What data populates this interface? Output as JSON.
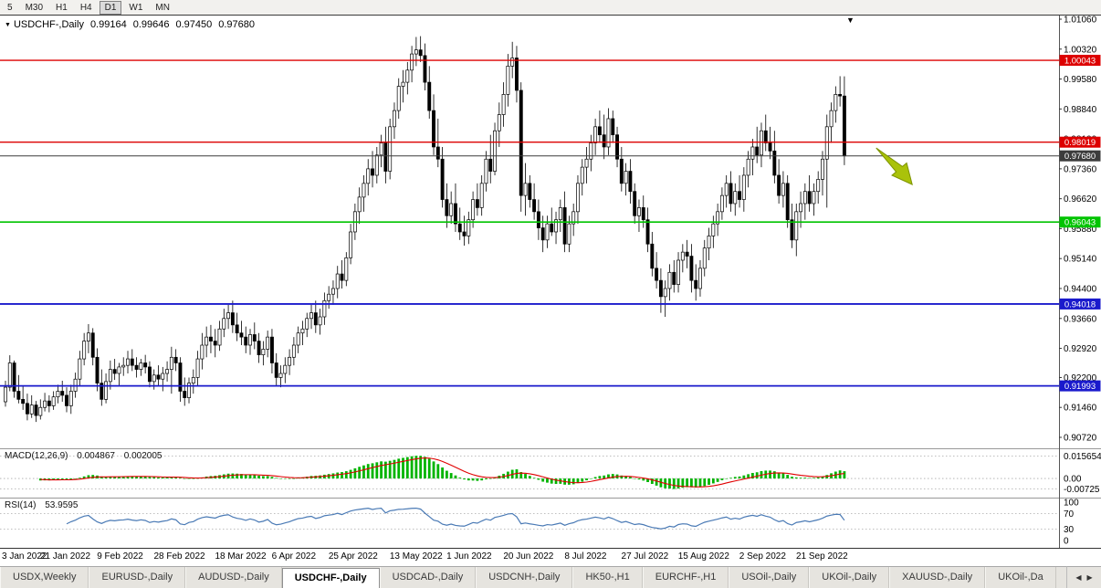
{
  "icons": {
    "dropdown": "▼",
    "scroll_marker": "▼",
    "tab_prev": "◀",
    "tab_next": "▶"
  },
  "toolbar": {
    "timeframes": [
      {
        "label": "5",
        "active": false
      },
      {
        "label": "M30",
        "active": false
      },
      {
        "label": "H1",
        "active": false
      },
      {
        "label": "H4",
        "active": false
      },
      {
        "label": "D1",
        "active": true
      },
      {
        "label": "W1",
        "active": false
      },
      {
        "label": "MN",
        "active": false
      }
    ]
  },
  "chart_header": {
    "symbol": "USDCHF-,Daily",
    "open": "0.99164",
    "high": "0.99646",
    "low": "0.97450",
    "close": "0.97680"
  },
  "tabs": [
    {
      "label": "USDX,Weekly",
      "active": false
    },
    {
      "label": "EURUSD-,Daily",
      "active": false
    },
    {
      "label": "AUDUSD-,Daily",
      "active": false
    },
    {
      "label": "USDCHF-,Daily",
      "active": true
    },
    {
      "label": "USDCAD-,Daily",
      "active": false
    },
    {
      "label": "USDCNH-,Daily",
      "active": false
    },
    {
      "label": "HK50-,H1",
      "active": false
    },
    {
      "label": "EURCHF-,H1",
      "active": false
    },
    {
      "label": "USOil-,Daily",
      "active": false
    },
    {
      "label": "UKOil-,Daily",
      "active": false
    },
    {
      "label": "XAUUSD-,Daily",
      "active": false
    },
    {
      "label": "UKOil-,Da",
      "active": false
    }
  ],
  "chart_data": {
    "type": "candlestick",
    "symbol": "USDCHF",
    "timeframe": "Daily",
    "ohlc_display": {
      "open": 0.99164,
      "high": 0.99646,
      "low": 0.9745,
      "close": 0.9768
    },
    "ylim": [
      0.9072,
      1.0106
    ],
    "price_axis_ticks": [
      "1.01060",
      "1.00320",
      "0.99580",
      "0.98840",
      "0.98100",
      "0.97360",
      "0.96620",
      "0.95880",
      "0.95140",
      "0.94400",
      "0.93660",
      "0.92920",
      "0.92200",
      "0.91460",
      "0.90720"
    ],
    "levels": [
      {
        "price": 1.00043,
        "label": "1.00043",
        "color": "#dd0000",
        "width": 1.4,
        "role": "resistance"
      },
      {
        "price": 0.98019,
        "label": "0.98019",
        "color": "#dd0000",
        "width": 1.4,
        "role": "resistance"
      },
      {
        "price": 0.9768,
        "label": "0.97680",
        "color": "#3c3c3c",
        "width": 1,
        "role": "current-price"
      },
      {
        "price": 0.96043,
        "label": "0.96043",
        "color": "#00c400",
        "width": 1.6,
        "role": "support"
      },
      {
        "price": 0.94018,
        "label": "0.94018",
        "color": "#1a1acc",
        "width": 1.8,
        "role": "support"
      },
      {
        "price": 0.91993,
        "label": "0.91993",
        "color": "#1a1acc",
        "width": 1.8,
        "role": "support"
      }
    ],
    "annotation": {
      "shape": "arrow-down-right",
      "color": "#aac20a",
      "anchor_index": 200,
      "anchor_price": 0.9794
    },
    "x_axis_labels": [
      {
        "label": "3 Jan 2022",
        "index": 0
      },
      {
        "label": "21 Jan 2022",
        "index": 14
      },
      {
        "label": "9 Feb 2022",
        "index": 27
      },
      {
        "label": "28 Feb 2022",
        "index": 40
      },
      {
        "label": "18 Mar 2022",
        "index": 54
      },
      {
        "label": "6 Apr 2022",
        "index": 67
      },
      {
        "label": "25 Apr 2022",
        "index": 80
      },
      {
        "label": "13 May 2022",
        "index": 94
      },
      {
        "label": "1 Jun 2022",
        "index": 107
      },
      {
        "label": "20 Jun 2022",
        "index": 120
      },
      {
        "label": "8 Jul 2022",
        "index": 134
      },
      {
        "label": "27 Jul 2022",
        "index": 147
      },
      {
        "label": "15 Aug 2022",
        "index": 160
      },
      {
        "label": "2 Sep 2022",
        "index": 174
      },
      {
        "label": "21 Sep 2022",
        "index": 187
      }
    ],
    "indicators": [
      {
        "name": "MACD",
        "label": "MACD(12,26,9)",
        "value_main": "0.004867",
        "value_signal": "0.002005",
        "axis_labels": [
          "0.015654",
          "0.00",
          "-0.00725"
        ],
        "axis_values": [
          0.015654,
          0,
          -0.00725
        ],
        "scale": [
          -0.0095,
          0.0185
        ],
        "histogram_color": "#00b400",
        "signal_color": "#e00000"
      },
      {
        "name": "RSI",
        "label": "RSI(14)",
        "value": "53.9595",
        "axis_labels": [
          "100",
          "70",
          "30",
          "0"
        ],
        "axis_values": [
          100,
          70,
          30,
          0
        ],
        "line_color": "#4a7ab5"
      }
    ],
    "candles": [
      [
        0.916,
        0.9212,
        0.9148,
        0.9196
      ],
      [
        0.9196,
        0.9275,
        0.9186,
        0.9256
      ],
      [
        0.9256,
        0.9262,
        0.917,
        0.9186
      ],
      [
        0.9186,
        0.9226,
        0.9156,
        0.9166
      ],
      [
        0.9166,
        0.92,
        0.914,
        0.9156
      ],
      [
        0.9156,
        0.918,
        0.9114,
        0.913
      ],
      [
        0.913,
        0.9176,
        0.912,
        0.9152
      ],
      [
        0.9152,
        0.9162,
        0.911,
        0.9126
      ],
      [
        0.9126,
        0.9166,
        0.9116,
        0.9146
      ],
      [
        0.9146,
        0.9182,
        0.9136,
        0.9162
      ],
      [
        0.9162,
        0.9176,
        0.9134,
        0.915
      ],
      [
        0.915,
        0.9186,
        0.914,
        0.9172
      ],
      [
        0.9172,
        0.9202,
        0.9156,
        0.9186
      ],
      [
        0.9186,
        0.9212,
        0.916,
        0.9176
      ],
      [
        0.9176,
        0.9196,
        0.9134,
        0.915
      ],
      [
        0.915,
        0.9202,
        0.913,
        0.9186
      ],
      [
        0.9186,
        0.9232,
        0.917,
        0.9216
      ],
      [
        0.9216,
        0.9286,
        0.92,
        0.9266
      ],
      [
        0.9266,
        0.933,
        0.925,
        0.931
      ],
      [
        0.931,
        0.9352,
        0.928,
        0.933
      ],
      [
        0.933,
        0.9342,
        0.925,
        0.927
      ],
      [
        0.927,
        0.9292,
        0.9186,
        0.9206
      ],
      [
        0.9206,
        0.924,
        0.915,
        0.9166
      ],
      [
        0.9166,
        0.923,
        0.9156,
        0.921
      ],
      [
        0.921,
        0.9262,
        0.919,
        0.924
      ],
      [
        0.924,
        0.9266,
        0.9214,
        0.923
      ],
      [
        0.923,
        0.9256,
        0.92,
        0.9246
      ],
      [
        0.9246,
        0.927,
        0.9224,
        0.925
      ],
      [
        0.925,
        0.9286,
        0.923,
        0.9266
      ],
      [
        0.9266,
        0.929,
        0.9236,
        0.925
      ],
      [
        0.925,
        0.927,
        0.922,
        0.924
      ],
      [
        0.924,
        0.9266,
        0.9224,
        0.9256
      ],
      [
        0.9256,
        0.9276,
        0.923,
        0.9246
      ],
      [
        0.9246,
        0.926,
        0.9196,
        0.921
      ],
      [
        0.921,
        0.924,
        0.919,
        0.9226
      ],
      [
        0.9226,
        0.925,
        0.92,
        0.9216
      ],
      [
        0.9216,
        0.9246,
        0.9186,
        0.923
      ],
      [
        0.923,
        0.926,
        0.921,
        0.924
      ],
      [
        0.924,
        0.9296,
        0.918,
        0.927
      ],
      [
        0.927,
        0.929,
        0.9236,
        0.9256
      ],
      [
        0.9256,
        0.927,
        0.916,
        0.9186
      ],
      [
        0.9186,
        0.922,
        0.915,
        0.917
      ],
      [
        0.917,
        0.922,
        0.9156,
        0.9206
      ],
      [
        0.9206,
        0.924,
        0.918,
        0.922
      ],
      [
        0.922,
        0.9286,
        0.92,
        0.9266
      ],
      [
        0.9266,
        0.933,
        0.924,
        0.93
      ],
      [
        0.93,
        0.9346,
        0.927,
        0.932
      ],
      [
        0.932,
        0.935,
        0.928,
        0.931
      ],
      [
        0.931,
        0.934,
        0.927,
        0.93
      ],
      [
        0.93,
        0.936,
        0.9286,
        0.934
      ],
      [
        0.934,
        0.939,
        0.932,
        0.9366
      ],
      [
        0.9366,
        0.94,
        0.934,
        0.938
      ],
      [
        0.938,
        0.941,
        0.933,
        0.935
      ],
      [
        0.935,
        0.938,
        0.931,
        0.933
      ],
      [
        0.933,
        0.936,
        0.93,
        0.932
      ],
      [
        0.932,
        0.9346,
        0.928,
        0.93
      ],
      [
        0.93,
        0.934,
        0.9276,
        0.9326
      ],
      [
        0.9326,
        0.9356,
        0.929,
        0.931
      ],
      [
        0.931,
        0.933,
        0.9256,
        0.9276
      ],
      [
        0.9276,
        0.931,
        0.925,
        0.929
      ],
      [
        0.929,
        0.9336,
        0.927,
        0.932
      ],
      [
        0.932,
        0.934,
        0.923,
        0.9256
      ],
      [
        0.9256,
        0.928,
        0.92,
        0.922
      ],
      [
        0.922,
        0.925,
        0.9196,
        0.923
      ],
      [
        0.923,
        0.927,
        0.9206,
        0.925
      ],
      [
        0.925,
        0.929,
        0.9226,
        0.927
      ],
      [
        0.927,
        0.932,
        0.925,
        0.93
      ],
      [
        0.93,
        0.9346,
        0.928,
        0.933
      ],
      [
        0.933,
        0.936,
        0.93,
        0.934
      ],
      [
        0.934,
        0.938,
        0.932,
        0.9366
      ],
      [
        0.9366,
        0.94,
        0.934,
        0.938
      ],
      [
        0.938,
        0.941,
        0.933,
        0.935
      ],
      [
        0.935,
        0.939,
        0.9326,
        0.937
      ],
      [
        0.937,
        0.943,
        0.935,
        0.941
      ],
      [
        0.941,
        0.9446,
        0.939,
        0.9426
      ],
      [
        0.9426,
        0.946,
        0.94,
        0.944
      ],
      [
        0.944,
        0.9496,
        0.9416,
        0.9476
      ],
      [
        0.9476,
        0.951,
        0.944,
        0.946
      ],
      [
        0.946,
        0.953,
        0.9446,
        0.9516
      ],
      [
        0.9516,
        0.96,
        0.95,
        0.958
      ],
      [
        0.958,
        0.965,
        0.956,
        0.963
      ],
      [
        0.963,
        0.969,
        0.96,
        0.9666
      ],
      [
        0.9666,
        0.972,
        0.963,
        0.97
      ],
      [
        0.97,
        0.976,
        0.967,
        0.9736
      ],
      [
        0.9736,
        0.978,
        0.969,
        0.972
      ],
      [
        0.972,
        0.979,
        0.97,
        0.977
      ],
      [
        0.977,
        0.982,
        0.974,
        0.98
      ],
      [
        0.98,
        0.984,
        0.97,
        0.973
      ],
      [
        0.973,
        0.986,
        0.971,
        0.984
      ],
      [
        0.984,
        0.99,
        0.981,
        0.988
      ],
      [
        0.988,
        0.996,
        0.986,
        0.994
      ],
      [
        0.994,
        0.998,
        0.99,
        0.995
      ],
      [
        0.995,
        1.0,
        0.992,
        0.998
      ],
      [
        0.998,
        1.004,
        0.995,
        1.002
      ],
      [
        1.002,
        1.0062,
        0.999,
        1.003
      ],
      [
        1.003,
        1.0064,
        1.0,
        1.0016
      ],
      [
        1.0016,
        1.0046,
        0.993,
        0.995
      ],
      [
        0.995,
        0.999,
        0.986,
        0.988
      ],
      [
        0.988,
        0.992,
        0.977,
        0.979
      ],
      [
        0.979,
        0.986,
        0.974,
        0.976
      ],
      [
        0.976,
        0.979,
        0.964,
        0.966
      ],
      [
        0.966,
        0.97,
        0.959,
        0.962
      ],
      [
        0.962,
        0.968,
        0.96,
        0.965
      ],
      [
        0.965,
        0.97,
        0.958,
        0.96
      ],
      [
        0.96,
        0.964,
        0.956,
        0.958
      ],
      [
        0.958,
        0.962,
        0.9546,
        0.957
      ],
      [
        0.957,
        0.963,
        0.955,
        0.961
      ],
      [
        0.961,
        0.968,
        0.959,
        0.966
      ],
      [
        0.966,
        0.97,
        0.962,
        0.964
      ],
      [
        0.964,
        0.972,
        0.962,
        0.97
      ],
      [
        0.97,
        0.978,
        0.968,
        0.976
      ],
      [
        0.976,
        0.982,
        0.97,
        0.973
      ],
      [
        0.973,
        0.985,
        0.972,
        0.983
      ],
      [
        0.983,
        0.99,
        0.979,
        0.987
      ],
      [
        0.987,
        0.995,
        0.984,
        0.992
      ],
      [
        0.992,
        1.002,
        0.989,
        0.999
      ],
      [
        0.999,
        1.005,
        0.996,
        1.001
      ],
      [
        1.001,
        1.004,
        0.99,
        0.993
      ],
      [
        0.993,
        0.995,
        0.963,
        0.967
      ],
      [
        0.967,
        0.975,
        0.962,
        0.97
      ],
      [
        0.97,
        0.972,
        0.964,
        0.966
      ],
      [
        0.966,
        0.97,
        0.961,
        0.963
      ],
      [
        0.963,
        0.966,
        0.956,
        0.959
      ],
      [
        0.959,
        0.962,
        0.953,
        0.956
      ],
      [
        0.956,
        0.962,
        0.954,
        0.96
      ],
      [
        0.96,
        0.964,
        0.957,
        0.958
      ],
      [
        0.958,
        0.963,
        0.955,
        0.961
      ],
      [
        0.961,
        0.966,
        0.958,
        0.964
      ],
      [
        0.964,
        0.968,
        0.953,
        0.955
      ],
      [
        0.955,
        0.962,
        0.953,
        0.96
      ],
      [
        0.96,
        0.965,
        0.957,
        0.963
      ],
      [
        0.963,
        0.972,
        0.96,
        0.97
      ],
      [
        0.97,
        0.976,
        0.967,
        0.974
      ],
      [
        0.974,
        0.979,
        0.97,
        0.976
      ],
      [
        0.976,
        0.982,
        0.973,
        0.98
      ],
      [
        0.98,
        0.986,
        0.977,
        0.984
      ],
      [
        0.984,
        0.988,
        0.98,
        0.982
      ],
      [
        0.982,
        0.987,
        0.976,
        0.979
      ],
      [
        0.979,
        0.9886,
        0.977,
        0.986
      ],
      [
        0.986,
        0.988,
        0.98,
        0.982
      ],
      [
        0.982,
        0.984,
        0.974,
        0.976
      ],
      [
        0.976,
        0.979,
        0.968,
        0.97
      ],
      [
        0.97,
        0.975,
        0.967,
        0.973
      ],
      [
        0.973,
        0.976,
        0.965,
        0.968
      ],
      [
        0.968,
        0.97,
        0.96,
        0.962
      ],
      [
        0.962,
        0.966,
        0.958,
        0.964
      ],
      [
        0.964,
        0.967,
        0.959,
        0.961
      ],
      [
        0.961,
        0.964,
        0.953,
        0.955
      ],
      [
        0.955,
        0.958,
        0.947,
        0.949
      ],
      [
        0.949,
        0.953,
        0.944,
        0.946
      ],
      [
        0.946,
        0.949,
        0.938,
        0.942
      ],
      [
        0.942,
        0.946,
        0.937,
        0.944
      ],
      [
        0.944,
        0.95,
        0.941,
        0.948
      ],
      [
        0.948,
        0.951,
        0.943,
        0.945
      ],
      [
        0.945,
        0.953,
        0.943,
        0.951
      ],
      [
        0.951,
        0.955,
        0.948,
        0.953
      ],
      [
        0.953,
        0.956,
        0.949,
        0.952
      ],
      [
        0.952,
        0.955,
        0.943,
        0.946
      ],
      [
        0.946,
        0.95,
        0.941,
        0.944
      ],
      [
        0.944,
        0.951,
        0.942,
        0.949
      ],
      [
        0.949,
        0.956,
        0.947,
        0.954
      ],
      [
        0.954,
        0.959,
        0.951,
        0.957
      ],
      [
        0.957,
        0.962,
        0.954,
        0.96
      ],
      [
        0.96,
        0.965,
        0.957,
        0.963
      ],
      [
        0.963,
        0.969,
        0.961,
        0.967
      ],
      [
        0.967,
        0.972,
        0.964,
        0.97
      ],
      [
        0.97,
        0.973,
        0.963,
        0.965
      ],
      [
        0.965,
        0.97,
        0.962,
        0.968
      ],
      [
        0.968,
        0.972,
        0.964,
        0.966
      ],
      [
        0.966,
        0.974,
        0.963,
        0.972
      ],
      [
        0.972,
        0.978,
        0.969,
        0.976
      ],
      [
        0.976,
        0.981,
        0.972,
        0.979
      ],
      [
        0.979,
        0.984,
        0.975,
        0.977
      ],
      [
        0.977,
        0.985,
        0.974,
        0.983
      ],
      [
        0.983,
        0.987,
        0.978,
        0.98
      ],
      [
        0.98,
        0.984,
        0.976,
        0.978
      ],
      [
        0.978,
        0.983,
        0.97,
        0.972
      ],
      [
        0.972,
        0.976,
        0.965,
        0.967
      ],
      [
        0.967,
        0.973,
        0.964,
        0.97
      ],
      [
        0.97,
        0.972,
        0.959,
        0.961
      ],
      [
        0.961,
        0.965,
        0.954,
        0.956
      ],
      [
        0.956,
        0.965,
        0.952,
        0.963
      ],
      [
        0.963,
        0.968,
        0.959,
        0.965
      ],
      [
        0.965,
        0.97,
        0.961,
        0.968
      ],
      [
        0.968,
        0.972,
        0.963,
        0.965
      ],
      [
        0.965,
        0.97,
        0.962,
        0.968
      ],
      [
        0.968,
        0.973,
        0.965,
        0.971
      ],
      [
        0.971,
        0.978,
        0.967,
        0.976
      ],
      [
        0.976,
        0.987,
        0.964,
        0.984
      ],
      [
        0.984,
        0.99,
        0.98,
        0.988
      ],
      [
        0.988,
        0.994,
        0.985,
        0.992
      ],
      [
        0.992,
        0.9965,
        0.989,
        0.9916
      ],
      [
        0.9916,
        0.99646,
        0.9745,
        0.9768
      ]
    ]
  }
}
